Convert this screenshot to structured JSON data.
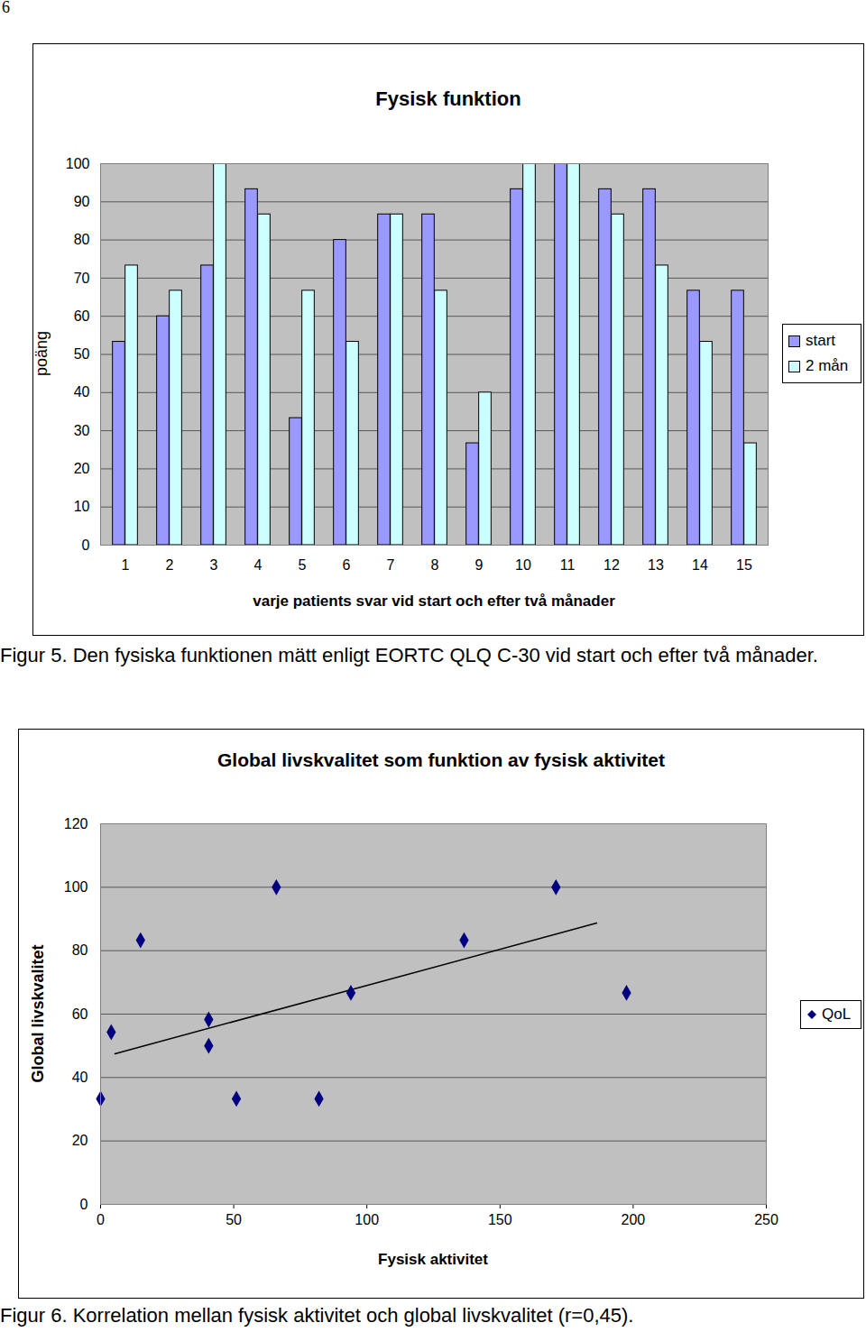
{
  "page_number": "6",
  "chart_data": [
    {
      "type": "bar",
      "title": "Fysisk funktion",
      "x_label": "varje patients svar vid start och efter två månader",
      "y_label": "poäng",
      "caption": "Figur 5. Den fysiska funktionen mätt enligt EORTC QLQ C-30 vid start och efter två månader.",
      "categories": [
        "1",
        "2",
        "3",
        "4",
        "5",
        "6",
        "7",
        "8",
        "9",
        "10",
        "11",
        "12",
        "13",
        "14",
        "15"
      ],
      "series": [
        {
          "name": "start",
          "color": "#9999ff",
          "values": [
            53.3,
            60,
            73.3,
            93.3,
            33.3,
            80,
            86.7,
            86.7,
            26.7,
            93.3,
            100,
            93.3,
            93.3,
            66.7,
            66.7
          ]
        },
        {
          "name": "2 mån",
          "color": "#ccffff",
          "values": [
            73.3,
            66.7,
            100,
            86.7,
            66.7,
            53.3,
            86.7,
            66.7,
            40,
            100,
            100,
            86.7,
            73.3,
            53.3,
            26.7
          ]
        }
      ],
      "ylim": [
        0,
        100
      ],
      "yticks": [
        0,
        10,
        20,
        30,
        40,
        50,
        60,
        70,
        80,
        90,
        100
      ],
      "grid": true,
      "legend": "right"
    },
    {
      "type": "scatter",
      "title": "Global livskvalitet som funktion av fysisk aktivitet",
      "x_label": "Fysisk aktivitet",
      "y_label": "Global livskvalitet",
      "caption": "Figur 6. Korrelation mellan fysisk aktivitet och global livskvalitet (r=0,45).",
      "x": [
        0,
        4,
        15,
        40.6,
        40.6,
        51,
        66,
        82,
        94,
        136.5,
        171,
        197.5
      ],
      "series": [
        {
          "name": "QoL",
          "color": "#000080",
          "marker": "diamond",
          "values": [
            33.3,
            54.3,
            83.3,
            58.3,
            50,
            33.3,
            100,
            33.3,
            66.7,
            83.3,
            100,
            66.7
          ]
        }
      ],
      "trendline": {
        "x": [
          5.4,
          186.3
        ],
        "values": [
          47.5,
          88.7
        ]
      },
      "xlim": [
        0,
        250
      ],
      "xticks": [
        0,
        50,
        100,
        150,
        200,
        250
      ],
      "ylim": [
        0,
        120
      ],
      "yticks": [
        0,
        20,
        40,
        60,
        80,
        100,
        120
      ],
      "grid": true,
      "legend": "right"
    }
  ]
}
